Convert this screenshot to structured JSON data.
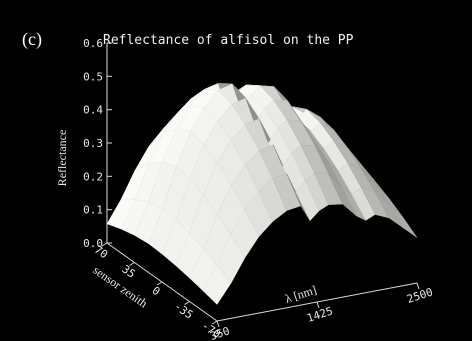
{
  "panel_label": "(c)",
  "chart_data": {
    "type": "surface",
    "title": "Reflectance of alfisol on the PP",
    "zlabel": "Reflectance",
    "xlabel": "sensor zenith",
    "ylabel": "λ [nm]",
    "z_ticks": [
      "0.0",
      "0.1",
      "0.2",
      "0.3",
      "0.4",
      "0.5",
      "0.6"
    ],
    "x_ticks": [
      "70",
      "35",
      "0",
      "-35",
      "-70"
    ],
    "y_ticks": [
      "350",
      "1425",
      "2500"
    ],
    "zlim": [
      0,
      0.6
    ],
    "xlim": [
      70,
      -70
    ],
    "ylim": [
      350,
      2500
    ],
    "wavelength": [
      350,
      500,
      650,
      800,
      950,
      1100,
      1250,
      1350,
      1450,
      1550,
      1700,
      1850,
      1950,
      2050,
      2200,
      2350,
      2500
    ],
    "reflectance_nadir": [
      0.08,
      0.17,
      0.28,
      0.37,
      0.43,
      0.47,
      0.48,
      0.4,
      0.44,
      0.46,
      0.45,
      0.38,
      0.35,
      0.37,
      0.34,
      0.28,
      0.22
    ],
    "zenith": [
      70,
      52,
      35,
      17,
      0,
      -17,
      -35,
      -52,
      -70
    ],
    "zenith_factor": [
      0.72,
      0.9,
      1.02,
      1.08,
      1.05,
      0.98,
      0.88,
      0.76,
      0.62
    ]
  }
}
